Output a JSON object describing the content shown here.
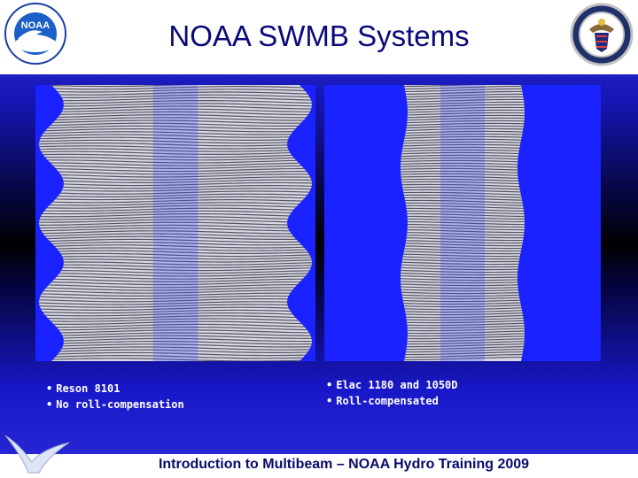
{
  "header": {
    "title": "NOAA SWMB Systems",
    "logo_text": "NOAA"
  },
  "panels": {
    "left": {
      "bullet": "•",
      "lines": [
        "Reson 8101",
        "No roll-compensation"
      ]
    },
    "right": {
      "bullet": "•",
      "lines": [
        "Elac 1180 and 1050D",
        "Roll-compensated"
      ]
    }
  },
  "footer": {
    "text": "Introduction to Multibeam – NOAA Hydro Training 2009"
  },
  "colors": {
    "background_blue": "#1616b8",
    "panel_blue": "#1a22ff",
    "title_navy": "#0a0a7a"
  }
}
